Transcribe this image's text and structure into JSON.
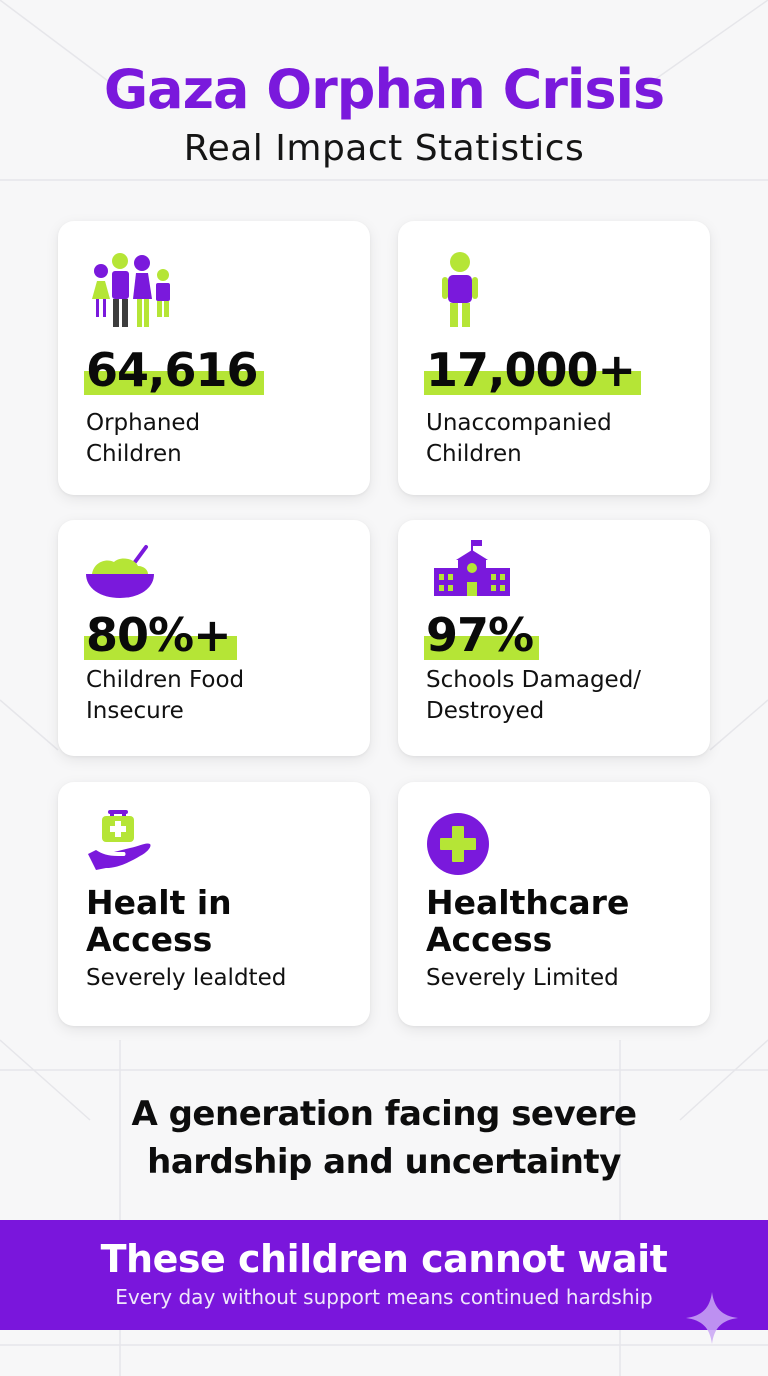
{
  "header": {
    "title": "Gaza Orphan Crisis",
    "subtitle": "Real Impact Statistics"
  },
  "cards": [
    {
      "icon": "family-icon",
      "value": "64,616",
      "label_line1": "Orphaned",
      "label_line2": "Children"
    },
    {
      "icon": "child-icon",
      "value": "17,000+",
      "label_line1": "Unaccompanied",
      "label_line2": "Children"
    },
    {
      "icon": "food-bowl-icon",
      "value": "80%+",
      "label_line1": "Children Food",
      "label_line2": "Insecure"
    },
    {
      "icon": "school-icon",
      "value": "97%",
      "label_line1": "Schools Damaged/",
      "label_line2": "Destroyed"
    },
    {
      "icon": "medical-hand-icon",
      "title_line1": "Healt in",
      "title_line2": "Access",
      "label": "Severely lealdted"
    },
    {
      "icon": "medical-cross-icon",
      "title_line1": "Healthcare",
      "title_line2": "Access",
      "label": "Severely Limited"
    }
  ],
  "tagline": {
    "line1": "A generation facing severe",
    "line2": "hardship and uncertainty"
  },
  "banner": {
    "title": "These children cannot wait",
    "subtitle": "Every day without support means continued hardship"
  },
  "colors": {
    "purple": "#7a19dc",
    "lime": "#b5e536",
    "banner": "#7a16dc"
  }
}
